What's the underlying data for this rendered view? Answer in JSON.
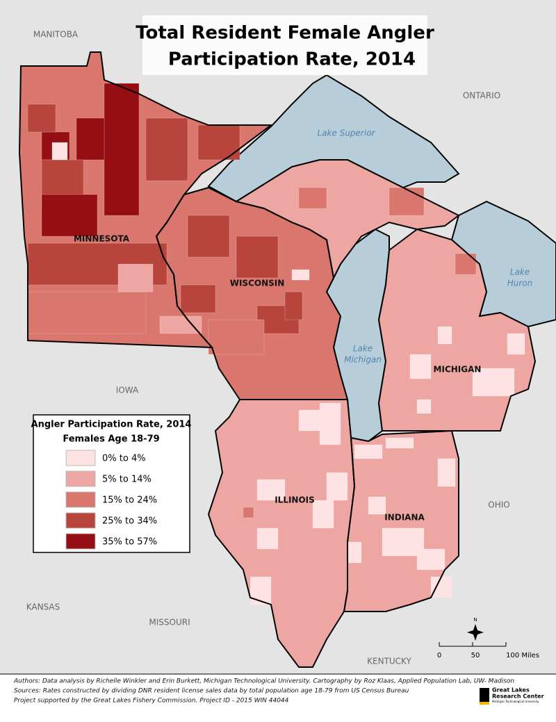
{
  "title": [
    "Total Resident Female Angler",
    "Participation Rate, 2014"
  ],
  "regions": {
    "manitoba": "MANITOBA",
    "ontario": "ONTARIO",
    "minnesota": "MINNESOTA",
    "wisconsin": "WISCONSIN",
    "michigan": "MICHIGAN",
    "iowa": "IOWA",
    "illinois": "ILLINOIS",
    "indiana": "INDIANA",
    "ohio": "OHIO",
    "kansas": "KANSAS",
    "missouri": "MISSOURI",
    "kentucky": "KENTUCKY"
  },
  "lakes": {
    "superior": "Lake Superior",
    "michigan": [
      "Lake",
      "Michigan"
    ],
    "huron": [
      "Lake",
      "Huron"
    ]
  },
  "legend": {
    "title": "Angler Participation Rate, 2014",
    "subtitle": "Females Age 18-79",
    "items": [
      {
        "label": "0% to 4%",
        "color": "#fde1e3"
      },
      {
        "label": "5% to 14%",
        "color": "#eda6a1"
      },
      {
        "label": "15% to 24%",
        "color": "#d9766d"
      },
      {
        "label": "25% to 34%",
        "color": "#b8453b"
      },
      {
        "label": "35% to 57%",
        "color": "#940e13"
      }
    ]
  },
  "north": "N",
  "scale": {
    "labels": [
      "0",
      "50",
      "100 Miles"
    ]
  },
  "credits": [
    "Authors: Data analysis by Richelle Winkler and Erin Burkett, Michigan Technological University. Cartography by Roz Klaas, Applied Population Lab, UW- Madison",
    "Sources: Rates constructed by dividing DNR resident license sales data by total population age 18-79 from US Census Bureau",
    "Project supported by the Great Lakes Fishery Commission. Project ID - 2015 WIN 44044"
  ],
  "logo": [
    "Great Lakes",
    "Research Center",
    "Michigan Technological University"
  ]
}
